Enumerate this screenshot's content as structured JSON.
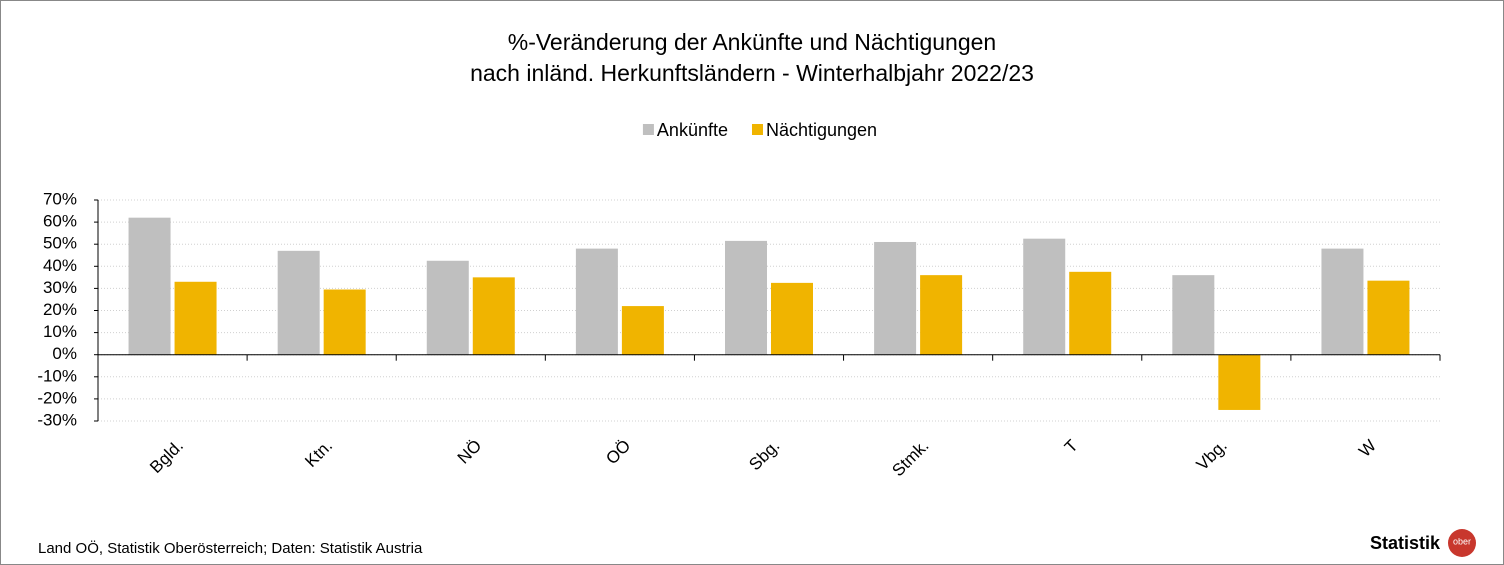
{
  "chart_data": {
    "type": "bar",
    "title": [
      "%-Veränderung der Ankünfte und Nächtigungen",
      "nach inländ. Herkunftsländern - Winterhalbjahr 2022/23"
    ],
    "categories": [
      "Bgld.",
      "Ktn.",
      "NÖ",
      "OÖ",
      "Sbg.",
      "Stmk.",
      "T",
      "Vbg.",
      "W"
    ],
    "series": [
      {
        "name": "Ankünfte",
        "color": "#bfbfbf",
        "values": [
          62,
          47,
          42.5,
          48,
          51.5,
          51,
          52.5,
          36,
          48
        ]
      },
      {
        "name": "Nächtigungen",
        "color": "#f0b400",
        "values": [
          33,
          29.5,
          35,
          22,
          32.5,
          36,
          37.5,
          -25,
          33.5
        ]
      }
    ],
    "ylim": [
      -30,
      70
    ],
    "yticks": [
      {
        "value": -30,
        "label": "-30%"
      },
      {
        "value": -20,
        "label": "-20%"
      },
      {
        "value": -10,
        "label": "-10%"
      },
      {
        "value": 0,
        "label": "0%"
      },
      {
        "value": 10,
        "label": "10%"
      },
      {
        "value": 20,
        "label": "20%"
      },
      {
        "value": 30,
        "label": "30%"
      },
      {
        "value": 40,
        "label": "40%"
      },
      {
        "value": 50,
        "label": "50%"
      },
      {
        "value": 60,
        "label": "60%"
      },
      {
        "value": 70,
        "label": "70%"
      }
    ],
    "grid": true,
    "legend": "top",
    "source": "Land OÖ, Statistik Oberösterreich; Daten: Statistik  Austria",
    "logo": {
      "text": "Statistik",
      "badge": "ober"
    }
  }
}
